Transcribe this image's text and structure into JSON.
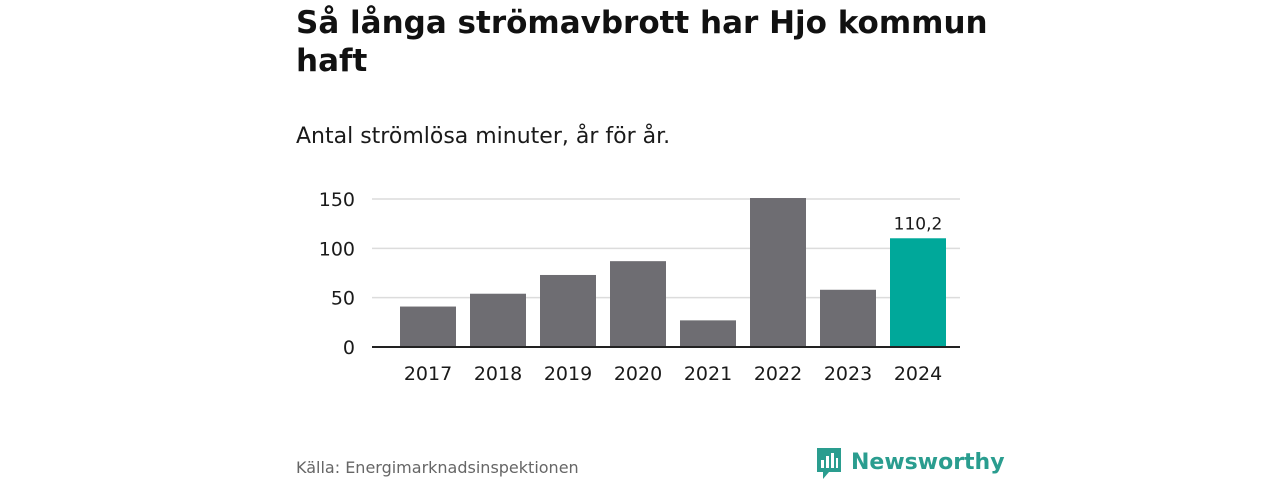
{
  "title": "Så långa strömavbrott har Hjo kommun haft",
  "subtitle": "Antal strömlösa minuter, år för år.",
  "source": "Källa: Energimarknadsinspektionen",
  "brand": {
    "name": "Newsworthy",
    "color": "#2a9d8f",
    "icon": "bar-chart-speech-icon"
  },
  "colors": {
    "bar": "#6e6d72",
    "highlight": "#00a89a",
    "grid": "#dcdcdc",
    "axis": "#222222"
  },
  "chart_data": {
    "type": "bar",
    "categories": [
      "2017",
      "2018",
      "2019",
      "2020",
      "2021",
      "2022",
      "2023",
      "2024"
    ],
    "values": [
      41,
      54,
      73,
      87,
      27,
      151,
      58,
      110.2
    ],
    "highlight_index": 7,
    "data_labels": {
      "7": "110,2"
    },
    "ylim": [
      0,
      150
    ],
    "yticks": [
      0,
      50,
      100,
      150
    ],
    "grid": true,
    "xlabel": "",
    "ylabel": ""
  }
}
